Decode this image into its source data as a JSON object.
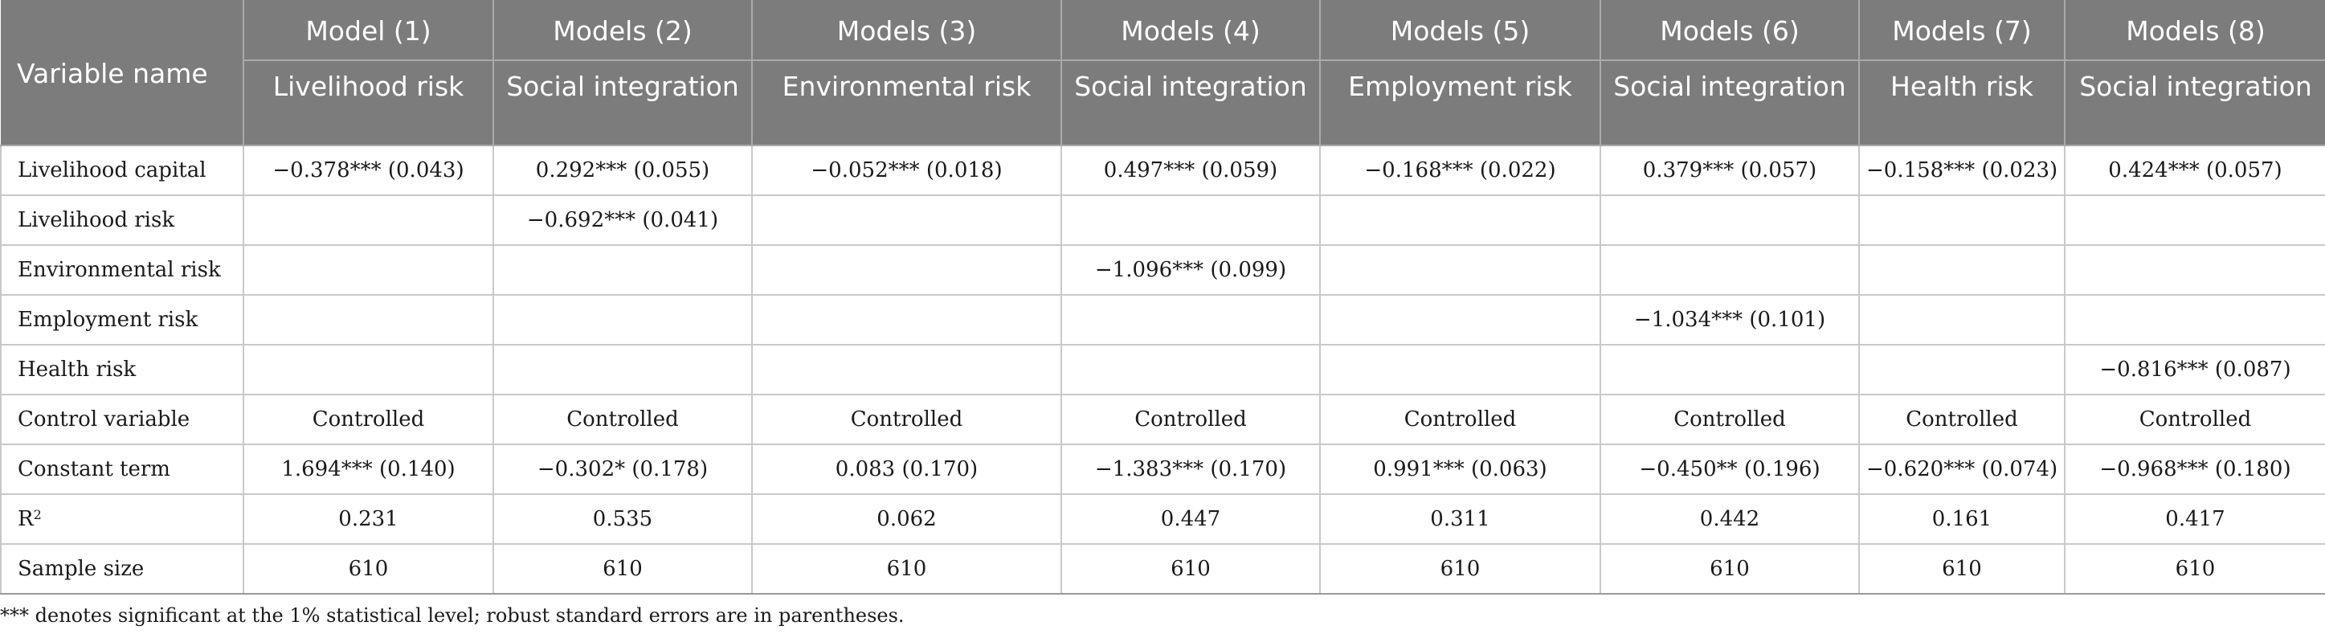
{
  "table": {
    "header_row1": [
      "Variable name",
      "Model (1)",
      "Models (2)",
      "Models (3)",
      "Models (4)",
      "Models (5)",
      "Models (6)",
      "Models (7)",
      "Models (8)"
    ],
    "header_row2": [
      "",
      "Livelihood risk",
      "Social integration",
      "Environmental risk",
      "Social integration",
      "Employment risk",
      "Social integration",
      "Health risk",
      "Social integration"
    ],
    "rows": [
      {
        "label": "Livelihood capital",
        "cells": [
          "−0.378*** (0.043)",
          "0.292*** (0.055)",
          "−0.052*** (0.018)",
          "0.497*** (0.059)",
          "−0.168*** (0.022)",
          "0.379*** (0.057)",
          "−0.158*** (0.023)",
          "0.424*** (0.057)"
        ]
      },
      {
        "label": "Livelihood risk",
        "cells": [
          "",
          "−0.692*** (0.041)",
          "",
          "",
          "",
          "",
          "",
          ""
        ]
      },
      {
        "label": "Environmental risk",
        "cells": [
          "",
          "",
          "",
          "−1.096*** (0.099)",
          "",
          "",
          "",
          ""
        ]
      },
      {
        "label": "Employment risk",
        "cells": [
          "",
          "",
          "",
          "",
          "",
          "−1.034*** (0.101)",
          "",
          ""
        ]
      },
      {
        "label": "Health risk",
        "cells": [
          "",
          "",
          "",
          "",
          "",
          "",
          "",
          "−0.816*** (0.087)"
        ]
      },
      {
        "label": "Control variable",
        "cells": [
          "Controlled",
          "Controlled",
          "Controlled",
          "Controlled",
          "Controlled",
          "Controlled",
          "Controlled",
          "Controlled"
        ]
      },
      {
        "label": "Constant term",
        "cells": [
          "1.694*** (0.140)",
          "−0.302* (0.178)",
          "0.083 (0.170)",
          "−1.383*** (0.170)",
          "0.991*** (0.063)",
          "−0.450** (0.196)",
          "−0.620*** (0.074)",
          "−0.968*** (0.180)"
        ]
      },
      {
        "label": "R",
        "label_sup": "2",
        "cells": [
          "0.231",
          "0.535",
          "0.062",
          "0.447",
          "0.311",
          "0.442",
          "0.161",
          "0.417"
        ]
      },
      {
        "label": "Sample size",
        "cells": [
          "610",
          "610",
          "610",
          "610",
          "610",
          "610",
          "610",
          "610"
        ]
      }
    ]
  },
  "footnote": "*** denotes significant at the 1% statistical level; robust standard errors are in parentheses.",
  "colors": {
    "header_bg": "#7b7c7b",
    "header_text": "#ffffff",
    "grid": "#c9c9c9"
  }
}
